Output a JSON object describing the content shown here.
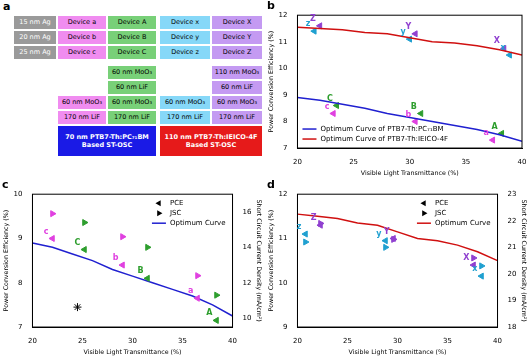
{
  "diagram": {
    "title": "a",
    "row_labels": [
      "15 nm Ag",
      "20 nm Ag",
      "25 nm Ag"
    ],
    "devices": [
      [
        "Device a",
        "Device A",
        "Device x",
        "Device X"
      ],
      [
        "Device b",
        "Device B",
        "Device y",
        "Device Y"
      ],
      [
        "Device c",
        "Device C",
        "Device z",
        "Device Z"
      ]
    ],
    "colors": [
      "#f08cf0",
      "#78d078",
      "#86d8f8",
      "#c49af2"
    ],
    "stacks": [
      {
        "layers": [
          [
            null,
            "60 nm MoO₃"
          ],
          [
            null,
            "60 nm LiF"
          ],
          [
            "60 nm MoO₃",
            "60 nm MoO₃"
          ],
          [
            "170 nm LiF",
            "170 nm LiF"
          ]
        ],
        "colors": [
          "#f08cf0",
          "#78d078"
        ],
        "base": {
          "text": "70 nm PTB7-Th:PC₇₁BM Based ST-OSC",
          "color": "#1a1ae6"
        }
      },
      {
        "layers": [
          [
            null,
            "110 nm MoO₃"
          ],
          [
            null,
            "60 nm LiF"
          ],
          [
            "60 nm MoO₃",
            "60 nm MoO₃"
          ],
          [
            "170 nm LiF",
            "170 nm LiF"
          ]
        ],
        "colors": [
          "#86d8f8",
          "#c49af2"
        ],
        "base": {
          "text": "110 nm PTB7-Th:IEICO-4F Based ST-OSC",
          "color": "#e61a1a"
        }
      }
    ]
  },
  "chart_data": [
    {
      "type": "line",
      "title": "b",
      "x_label": "Visible Light Transmittance (%)",
      "y_label": "Power Conversion Efficiency (%)",
      "xlim": [
        20,
        40
      ],
      "xticks": [
        20,
        25,
        30,
        35,
        40
      ],
      "ylim": [
        7,
        12
      ],
      "yticks": [
        7,
        8,
        9,
        10,
        11,
        12
      ],
      "grid": false,
      "legend": "bottom-left",
      "series": [
        {
          "name": "Optimum Curve of PTB7-Th:PC₇₁BM",
          "color": "#2020d0",
          "x": [
            20,
            22,
            24,
            26,
            28,
            30,
            32,
            34,
            36,
            38,
            40
          ],
          "values": [
            8.9,
            8.8,
            8.65,
            8.5,
            8.3,
            8.15,
            8.0,
            7.85,
            7.7,
            7.5,
            7.25
          ]
        },
        {
          "name": "Optimum Curve of PTB7-Th:IEICO-4F",
          "color": "#d01010",
          "x": [
            20,
            22,
            24,
            26,
            28,
            30,
            32,
            34,
            36,
            38,
            40
          ],
          "values": [
            11.55,
            11.5,
            11.45,
            11.35,
            11.3,
            11.15,
            11.0,
            10.95,
            10.85,
            10.7,
            10.5
          ]
        },
        {
          "type": "scatter",
          "marker": "triangle-left",
          "colors": [
            "#e040e0",
            "#2e9e2e",
            "#e040e0",
            "#2e9e2e",
            "#e040e0",
            "#2e9e2e",
            "#20a0d0",
            "#9040d0",
            "#20a0d0",
            "#9040d0",
            "#20a0d0",
            "#9040d0"
          ],
          "x": [
            37.4,
            38.2,
            30.5,
            31.0,
            23.2,
            23.5,
            38.9,
            38.4,
            30.0,
            30.5,
            21.5,
            22.0
          ],
          "values": [
            7.3,
            7.55,
            8.0,
            8.3,
            8.3,
            8.6,
            10.5,
            10.75,
            11.1,
            11.3,
            11.4,
            11.6
          ]
        }
      ],
      "annotations": [
        {
          "text": "a",
          "x": 37.4,
          "y": 7.3,
          "color": "#e040e0"
        },
        {
          "text": "A",
          "x": 38.2,
          "y": 7.55,
          "color": "#2e9e2e"
        },
        {
          "text": "b",
          "x": 30.5,
          "y": 8.0,
          "color": "#e040e0"
        },
        {
          "text": "B",
          "x": 31.0,
          "y": 8.3,
          "color": "#2e9e2e"
        },
        {
          "text": "c",
          "x": 23.2,
          "y": 8.3,
          "color": "#e040e0"
        },
        {
          "text": "C",
          "x": 23.5,
          "y": 8.6,
          "color": "#2e9e2e"
        },
        {
          "text": "x",
          "x": 38.9,
          "y": 10.5,
          "color": "#20a0d0"
        },
        {
          "text": "X",
          "x": 38.4,
          "y": 10.75,
          "color": "#9040d0"
        },
        {
          "text": "y",
          "x": 30.0,
          "y": 11.1,
          "color": "#20a0d0"
        },
        {
          "text": "Y",
          "x": 30.5,
          "y": 11.3,
          "color": "#9040d0"
        },
        {
          "text": "z",
          "x": 21.5,
          "y": 11.4,
          "color": "#20a0d0"
        },
        {
          "text": "Z",
          "x": 22.0,
          "y": 11.6,
          "color": "#9040d0"
        }
      ]
    },
    {
      "type": "line",
      "title": "c",
      "x_label": "Visible Light Transmittance (%)",
      "y_label": "Power Conversion Efficiency (%)",
      "y2_label": "Short Circuit Current Density (mA/cm²)",
      "xlim": [
        20,
        40
      ],
      "xticks": [
        20,
        25,
        30,
        35,
        40
      ],
      "ylim": [
        7,
        10
      ],
      "yticks": [
        7,
        8,
        9,
        10
      ],
      "y2lim": [
        9.5,
        17
      ],
      "y2ticks": [
        10,
        12,
        14,
        16
      ],
      "grid": false,
      "legend": "top-right",
      "series": [
        {
          "name": "PCE",
          "type": "scatter",
          "marker": "triangle-left",
          "color": "#000000",
          "colors": [
            "#e040e0",
            "#2e9e2e",
            "#e040e0",
            "#2e9e2e",
            "#e040e0",
            "#2e9e2e"
          ],
          "x": [
            22.0,
            25.2,
            29.0,
            31.5,
            36.5,
            38.4
          ],
          "values": [
            9.0,
            8.75,
            8.4,
            8.1,
            7.65,
            7.15
          ]
        },
        {
          "name": "JSC",
          "type": "scatter",
          "marker": "triangle-right",
          "color": "#000000",
          "axis": "y2",
          "colors": [
            "#e040e0",
            "#2e9e2e",
            "#e040e0",
            "#2e9e2e",
            "#e040e0",
            "#2e9e2e"
          ],
          "x": [
            22.0,
            25.2,
            29.0,
            31.5,
            36.5,
            38.4
          ],
          "values": [
            15.9,
            15.4,
            14.6,
            14.0,
            12.4,
            11.3
          ]
        },
        {
          "name": "Optimum Curve",
          "color": "#2020d0",
          "x": [
            20,
            22,
            24,
            26,
            28,
            30,
            32,
            34,
            36,
            38,
            40
          ],
          "values": [
            8.9,
            8.8,
            8.65,
            8.5,
            8.3,
            8.15,
            8.0,
            7.85,
            7.7,
            7.5,
            7.25
          ]
        },
        {
          "type": "scatter",
          "marker": "star",
          "color": "#000000",
          "x": [
            24.5
          ],
          "values": [
            7.45
          ]
        }
      ],
      "annotations": [
        {
          "text": "c",
          "x": 22.0,
          "y": 9.0,
          "color": "#e040e0"
        },
        {
          "text": "C",
          "x": 25.2,
          "y": 8.75,
          "color": "#2e9e2e"
        },
        {
          "text": "b",
          "x": 29.0,
          "y": 8.4,
          "color": "#e040e0"
        },
        {
          "text": "B",
          "x": 31.5,
          "y": 8.1,
          "color": "#2e9e2e"
        },
        {
          "text": "a",
          "x": 36.5,
          "y": 7.65,
          "color": "#e040e0"
        },
        {
          "text": "A",
          "x": 38.4,
          "y": 7.15,
          "color": "#2e9e2e"
        }
      ]
    },
    {
      "type": "line",
      "title": "d",
      "x_label": "Visible Light Transmittance (%)",
      "y_label": "Power Conversion Efficiency (%)",
      "y2_label": "Short Circuit Current Density (mA/cm²)",
      "xlim": [
        20,
        40
      ],
      "xticks": [
        20,
        25,
        30,
        35,
        40
      ],
      "ylim": [
        9,
        12
      ],
      "yticks": [
        9,
        10,
        11,
        12
      ],
      "y2lim": [
        18,
        23
      ],
      "y2ticks": [
        18,
        19,
        20,
        21,
        22,
        23
      ],
      "grid": false,
      "legend": "top-right",
      "series": [
        {
          "name": "PCE",
          "type": "scatter",
          "marker": "triangle-left",
          "color": "#000000",
          "colors": [
            "#20a0d0",
            "#9040d0",
            "#20a0d0",
            "#9040d0",
            "#9040d0",
            "#20a0d0"
          ],
          "x": [
            20.8,
            22.3,
            28.8,
            29.6,
            37.6,
            38.4
          ],
          "values": [
            11.1,
            11.3,
            10.95,
            11.0,
            10.4,
            10.15
          ]
        },
        {
          "name": "JSC",
          "type": "scatter",
          "marker": "triangle-right",
          "color": "#000000",
          "axis": "y2",
          "colors": [
            "#20a0d0",
            "#9040d0",
            "#20a0d0",
            "#9040d0",
            "#9040d0",
            "#20a0d0"
          ],
          "x": [
            20.8,
            22.3,
            28.8,
            29.6,
            37.6,
            38.4
          ],
          "values": [
            21.2,
            21.9,
            21.0,
            21.3,
            20.6,
            20.3
          ]
        },
        {
          "name": "Optimum Curve",
          "color": "#d01010",
          "x": [
            20,
            22,
            24,
            26,
            28,
            30,
            32,
            34,
            36,
            38,
            40
          ],
          "values": [
            11.55,
            11.5,
            11.45,
            11.35,
            11.3,
            11.15,
            11.0,
            10.95,
            10.85,
            10.7,
            10.5
          ]
        }
      ],
      "annotations": [
        {
          "text": "z",
          "x": 20.8,
          "y": 11.1,
          "color": "#20a0d0"
        },
        {
          "text": "Z",
          "x": 22.3,
          "y": 11.3,
          "color": "#9040d0"
        },
        {
          "text": "y",
          "x": 28.8,
          "y": 10.95,
          "color": "#20a0d0"
        },
        {
          "text": "Y",
          "x": 29.6,
          "y": 11.0,
          "color": "#9040d0"
        },
        {
          "text": "X",
          "x": 37.6,
          "y": 10.4,
          "color": "#9040d0"
        },
        {
          "text": "x",
          "x": 38.4,
          "y": 10.15,
          "color": "#20a0d0"
        }
      ]
    }
  ]
}
